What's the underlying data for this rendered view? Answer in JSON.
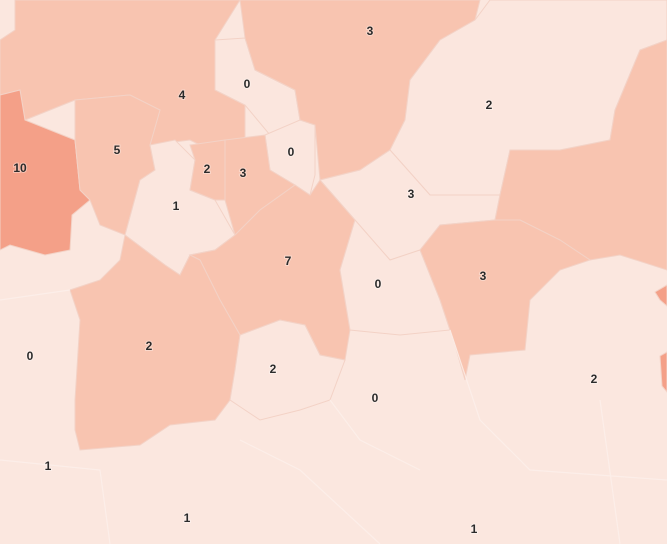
{
  "map": {
    "shade_colors": {
      "light": "#fbe6de",
      "medium": "#f8c4b0",
      "dark": "#f4a088",
      "background": "#fbe7df"
    },
    "regions": [
      {
        "id": "r10",
        "value": "10",
        "shade": "dark"
      },
      {
        "id": "r5",
        "value": "5",
        "shade": "medium"
      },
      {
        "id": "r4",
        "value": "4",
        "shade": "medium"
      },
      {
        "id": "r0a",
        "value": "0",
        "shade": "light"
      },
      {
        "id": "r0b",
        "value": "0",
        "shade": "light"
      },
      {
        "id": "r3top",
        "value": "3",
        "shade": "medium"
      },
      {
        "id": "r2ne",
        "value": "2",
        "shade": "light"
      },
      {
        "id": "r3mid",
        "value": "3",
        "shade": "light"
      },
      {
        "id": "reast",
        "value": "",
        "shade": "medium"
      },
      {
        "id": "r1",
        "value": "1",
        "shade": "light"
      },
      {
        "id": "r2c",
        "value": "2",
        "shade": "medium"
      },
      {
        "id": "r3c",
        "value": "3",
        "shade": "medium"
      },
      {
        "id": "r7",
        "value": "7",
        "shade": "medium"
      },
      {
        "id": "r0c",
        "value": "0",
        "shade": "light"
      },
      {
        "id": "r3e",
        "value": "3",
        "shade": "medium"
      },
      {
        "id": "r2sw",
        "value": "2",
        "shade": "medium"
      },
      {
        "id": "r2s",
        "value": "2",
        "shade": "light"
      },
      {
        "id": "redge1",
        "value": "",
        "shade": "dark"
      },
      {
        "id": "redge2",
        "value": "",
        "shade": "dark"
      },
      {
        "id": "r0w",
        "value": "0",
        "shade": "light"
      },
      {
        "id": "r2se",
        "value": "2",
        "shade": "light"
      },
      {
        "id": "r0s",
        "value": "0",
        "shade": "light"
      },
      {
        "id": "r1sw",
        "value": "1",
        "shade": "light"
      },
      {
        "id": "r1s",
        "value": "1",
        "shade": "light"
      },
      {
        "id": "r1se",
        "value": "1",
        "shade": "light"
      }
    ]
  }
}
